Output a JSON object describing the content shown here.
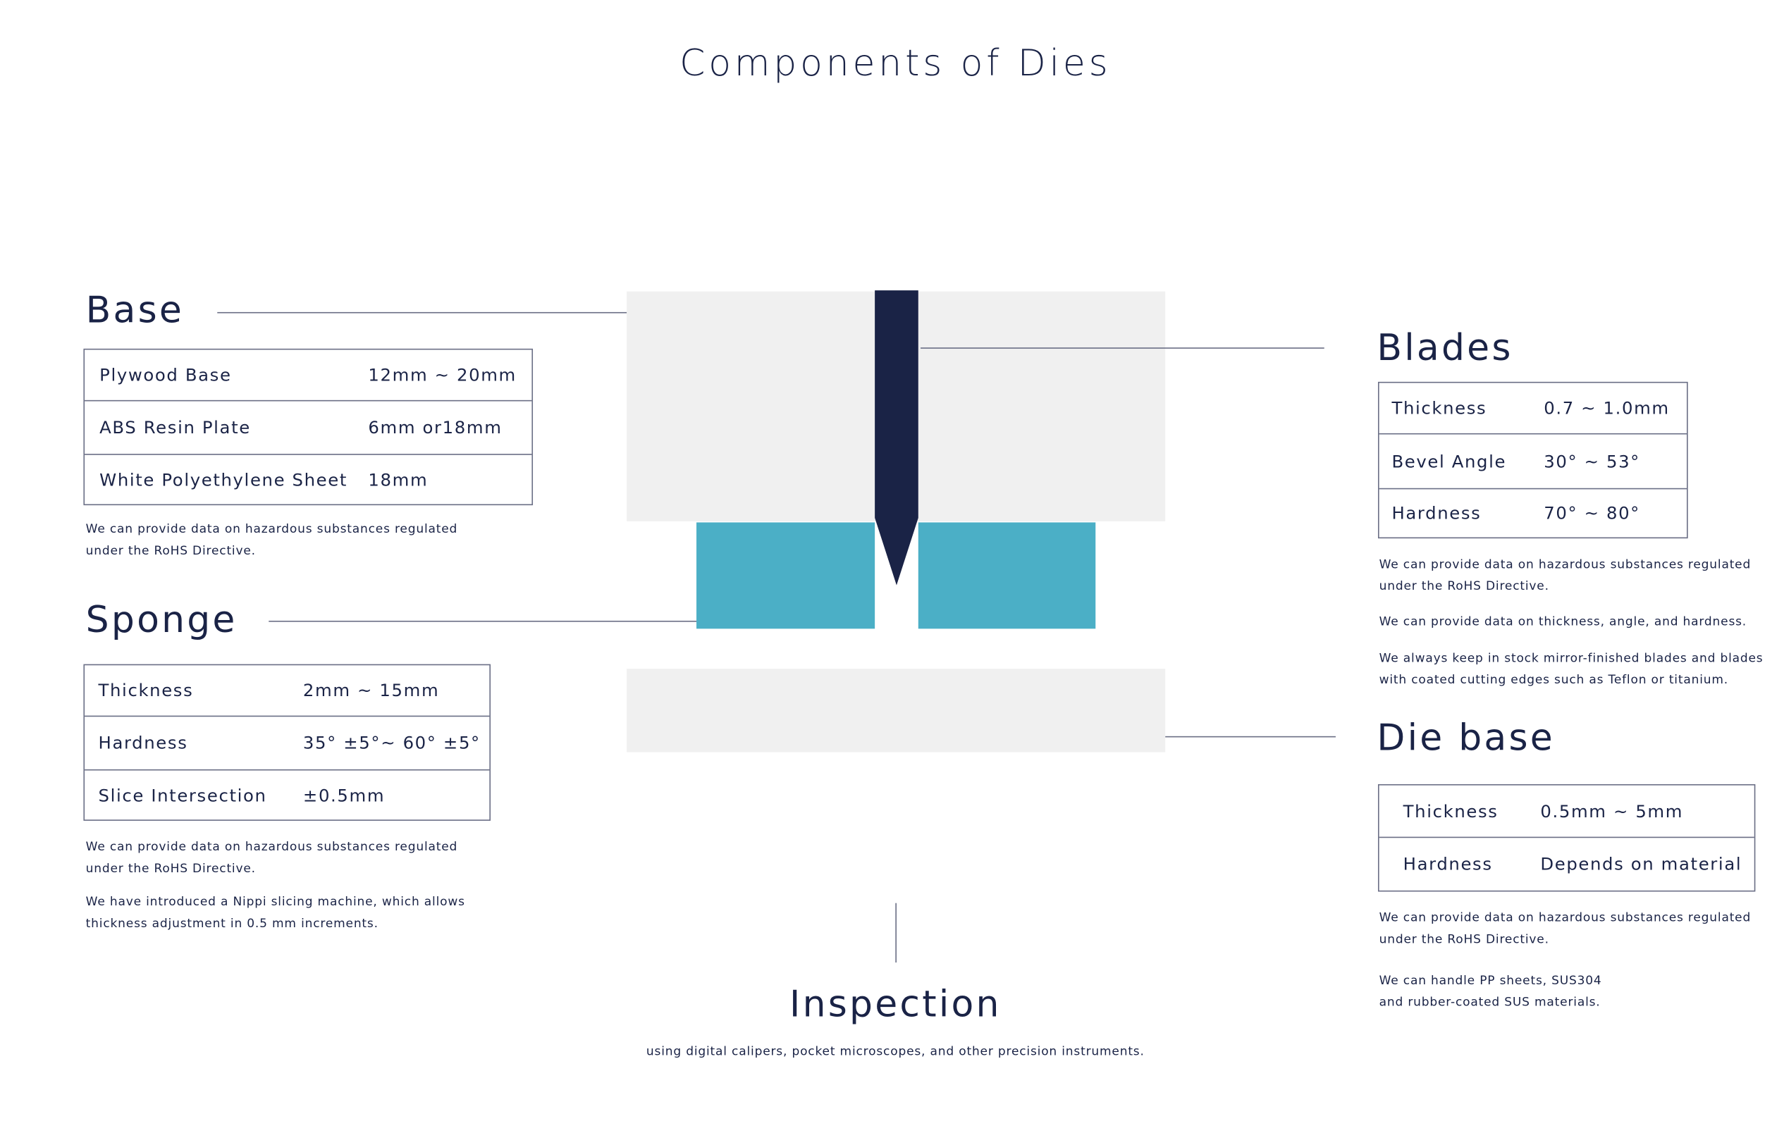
{
  "title": "Components of Dies",
  "colors": {
    "navy": "#1a2346",
    "teal": "#4bafc6",
    "gray": "#f0f0f0"
  },
  "base": {
    "heading": "Base",
    "rows": [
      {
        "label": "Plywood Base",
        "value": "12mm ~ 20mm"
      },
      {
        "label": "ABS Resin Plate",
        "value": "6mm or18mm"
      },
      {
        "label": "White Polyethylene Sheet",
        "value": "18mm"
      }
    ],
    "notes": [
      "We can provide data on hazardous substances regulated",
      "under the RoHS Directive."
    ]
  },
  "sponge": {
    "heading": "Sponge",
    "rows": [
      {
        "label": "Thickness",
        "value": "2mm ~ 15mm"
      },
      {
        "label": "Hardness",
        "value": "35° ±5°~ 60° ±5°"
      },
      {
        "label": "Slice Intersection",
        "value": "±0.5mm"
      }
    ],
    "notes": [
      "We can provide data on hazardous substances regulated",
      "under the RoHS Directive.",
      "We have introduced a Nippi slicing machine, which allows",
      "thickness adjustment in 0.5 mm increments."
    ]
  },
  "blades": {
    "heading": "Blades",
    "rows": [
      {
        "label": "Thickness",
        "value": "0.7 ~ 1.0mm"
      },
      {
        "label": "Bevel Angle",
        "value": "30° ~ 53°"
      },
      {
        "label": "Hardness",
        "value": "70° ~ 80°"
      }
    ],
    "notes": [
      "We can provide data on hazardous substances regulated",
      "under the RoHS Directive.",
      "We can provide data on thickness, angle, and hardness.",
      "We always keep in stock mirror-finished blades and blades",
      "with coated cutting edges such as Teflon or titanium."
    ]
  },
  "die_base": {
    "heading": "Die base",
    "rows": [
      {
        "label": "Thickness",
        "value": "0.5mm ~ 5mm"
      },
      {
        "label": "Hardness",
        "value": "Depends on material"
      }
    ],
    "notes": [
      "We can provide data on hazardous substances regulated",
      "under the RoHS Directive.",
      "We can handle PP sheets, SUS304",
      "and rubber-coated SUS materials."
    ]
  },
  "inspection": {
    "heading": "Inspection",
    "subtitle": "using digital calipers, pocket microscopes, and other precision instruments."
  }
}
